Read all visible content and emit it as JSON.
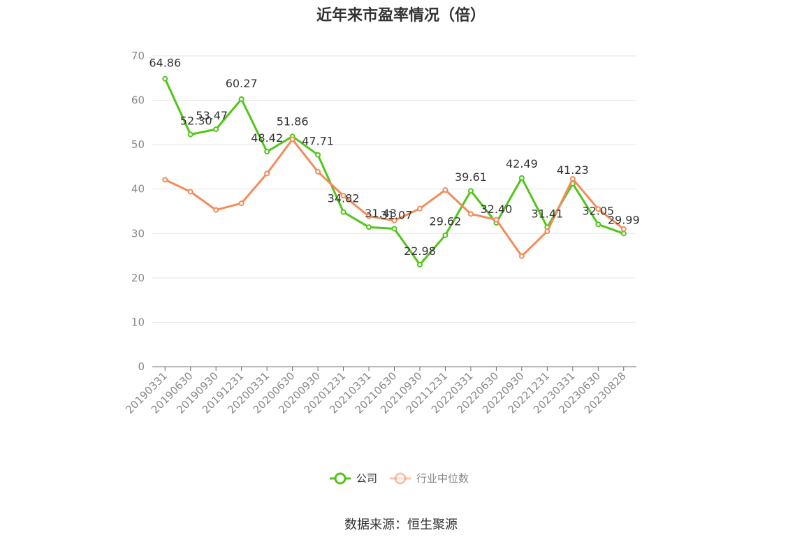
{
  "chart_data": {
    "type": "line",
    "title": "近年来市盈率情况（倍）",
    "source": "数据来源：恒生聚源",
    "categories": [
      "20190331",
      "20190630",
      "20190930",
      "20191231",
      "20200331",
      "20200630",
      "20200930",
      "20201231",
      "20210331",
      "20210630",
      "20210930",
      "20211231",
      "20220331",
      "20220630",
      "20220930",
      "20221231",
      "20230331",
      "20230630",
      "20230828"
    ],
    "ylim": [
      0,
      70
    ],
    "yticks": [
      0,
      10,
      20,
      30,
      40,
      50,
      60,
      70
    ],
    "grid": true,
    "legend_position": "bottom",
    "series": [
      {
        "name": "公司",
        "color": "#52c41a",
        "show_labels": true,
        "values": [
          64.86,
          52.3,
          53.47,
          60.27,
          48.42,
          51.86,
          47.71,
          34.82,
          31.43,
          31.07,
          22.98,
          29.62,
          39.61,
          32.4,
          42.49,
          31.41,
          41.23,
          32.05,
          29.99
        ],
        "labels": [
          "64.86",
          "52.30",
          "53.47",
          "60.27",
          "48.42",
          "51.86",
          "47.71",
          "34.82",
          "31.43",
          "31.07",
          "22.98",
          "29.62",
          "39.61",
          "32.40",
          "42.49",
          "31.41",
          "41.23",
          "32.05",
          "29.99"
        ]
      },
      {
        "name": "行业中位数",
        "color": "#f28c5a",
        "show_labels": false,
        "values": [
          42.1,
          39.4,
          35.3,
          36.8,
          43.5,
          51.2,
          43.9,
          38.5,
          33.9,
          32.9,
          35.6,
          39.8,
          34.4,
          33.1,
          24.9,
          30.5,
          42.3,
          35.5,
          31.0
        ]
      }
    ]
  }
}
